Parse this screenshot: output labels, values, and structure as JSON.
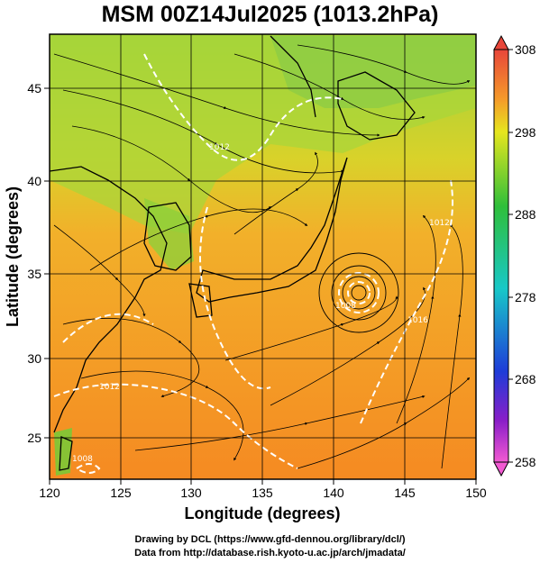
{
  "title": "MSM 00Z14Jul2025 (1013.2hPa)",
  "map": {
    "x_axis_label": "Longitude (degrees)",
    "y_axis_label": "Latitude  (degrees)",
    "lon_ticks": [
      "120",
      "125",
      "130",
      "135",
      "140",
      "145",
      "150"
    ],
    "lat_ticks": [
      "25",
      "30",
      "35",
      "40",
      "45"
    ],
    "lon_range": [
      120,
      150
    ],
    "lat_range": [
      22.4,
      47.6
    ],
    "gridlines": true
  },
  "colorbar": {
    "ticks": [
      "308",
      "298",
      "288",
      "278",
      "268",
      "258"
    ],
    "range": [
      258,
      308
    ],
    "colors": {
      "top": "#e8463a",
      "orange": "#f59a2a",
      "yellow": "#e6e61e",
      "green": "#2fbf3a",
      "cyan": "#18c8c8",
      "blue": "#1e3cd8",
      "purple": "#8a1ec8",
      "bottom": "#f25ad2"
    }
  },
  "contour_labels": [
    "1012",
    "1012",
    "1016",
    "1008",
    "1008",
    "1012"
  ],
  "credits": {
    "line1": "Drawing by DCL (https://www.gfd-dennou.org/library/dcl/)",
    "line2": "Data from http://database.rish.kyoto-u.ac.jp/arch/jmadata/"
  }
}
